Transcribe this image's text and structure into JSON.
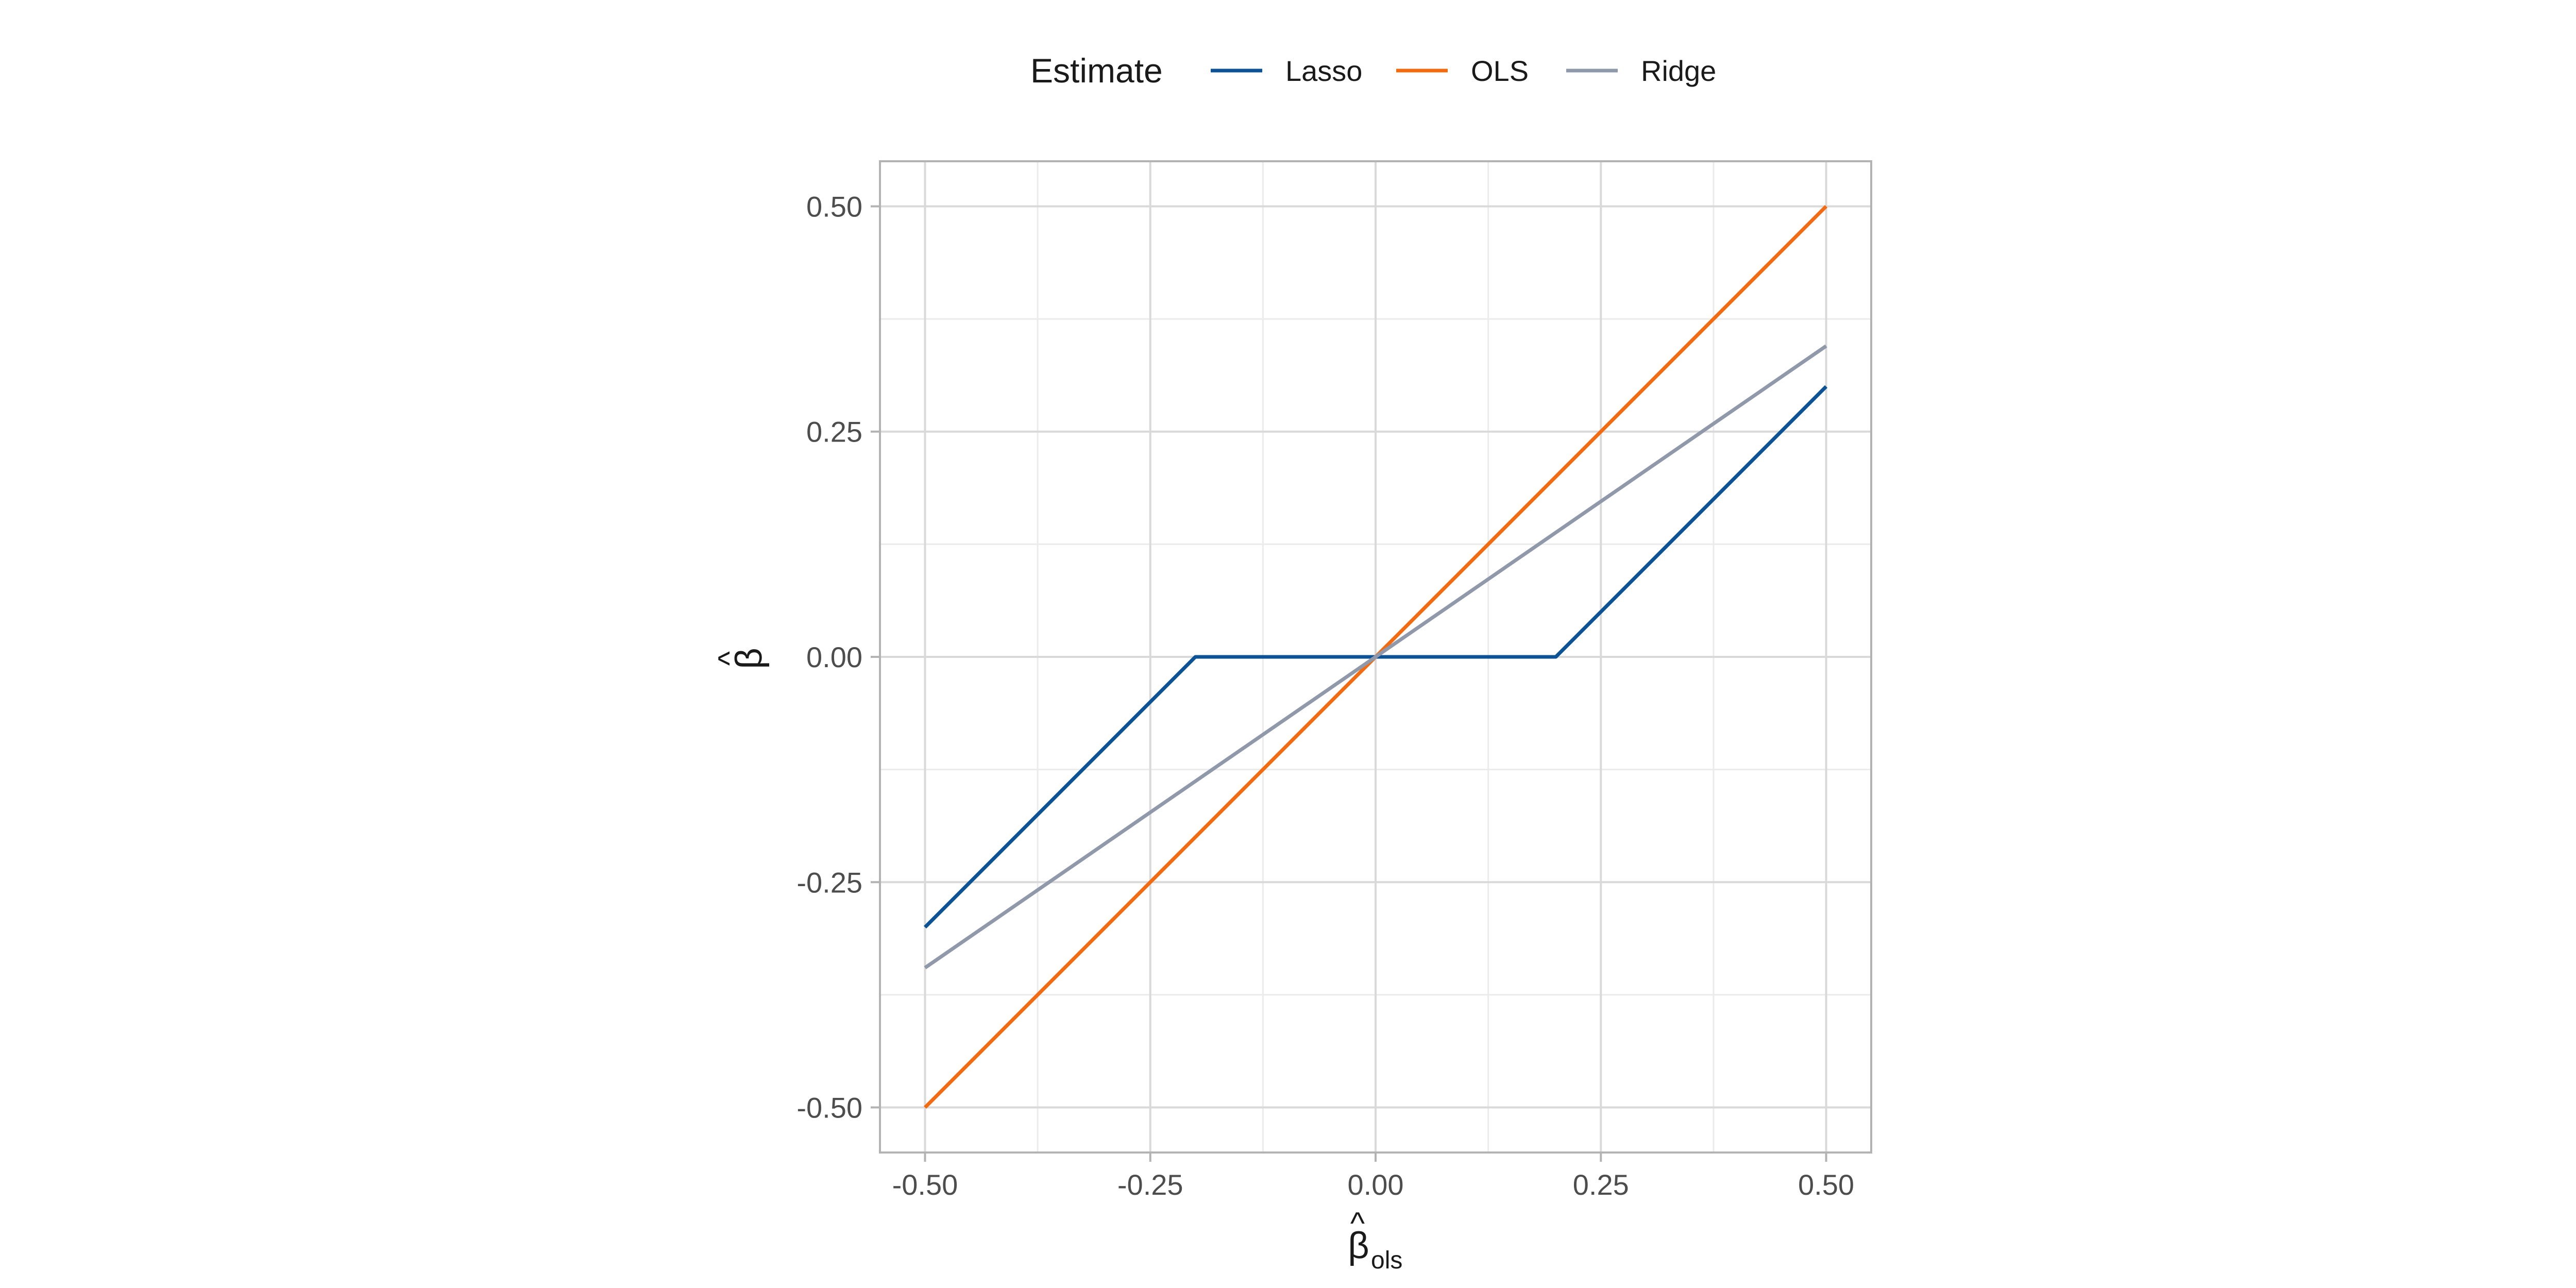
{
  "chart_data": {
    "type": "line",
    "title": "",
    "legend": {
      "title": "Estimate",
      "placement": "top",
      "entries": [
        "Lasso",
        "OLS",
        "Ridge"
      ]
    },
    "xlabel": {
      "symbol": "β",
      "hat": "^",
      "subscript": "ols"
    },
    "ylabel": {
      "symbol": "β",
      "hat": "^"
    },
    "xlim": [
      -0.55,
      0.55
    ],
    "ylim": [
      -0.55,
      0.55
    ],
    "x_ticks": [
      -0.5,
      -0.25,
      0.0,
      0.25,
      0.5
    ],
    "y_ticks": [
      -0.5,
      -0.25,
      0.0,
      0.25,
      0.5
    ],
    "x_tick_labels": [
      "-0.50",
      "-0.25",
      "0.00",
      "0.25",
      "0.50"
    ],
    "y_tick_labels": [
      "-0.50",
      "-0.25",
      "0.00",
      "0.25",
      "0.50"
    ],
    "minor_ticks": [
      -0.375,
      -0.125,
      0.125,
      0.375
    ],
    "grid": true,
    "series": [
      {
        "name": "Lasso",
        "color": "#0b5394",
        "x": [
          -0.5,
          -0.2,
          0.2,
          0.5
        ],
        "y": [
          -0.3,
          0.0,
          0.0,
          0.3
        ]
      },
      {
        "name": "OLS",
        "color": "#f26b10",
        "x": [
          -0.5,
          0.5
        ],
        "y": [
          -0.5,
          0.5
        ]
      },
      {
        "name": "Ridge",
        "color": "#8f99aa",
        "x": [
          -0.5,
          0.5
        ],
        "y": [
          -0.345,
          0.345
        ]
      }
    ]
  }
}
